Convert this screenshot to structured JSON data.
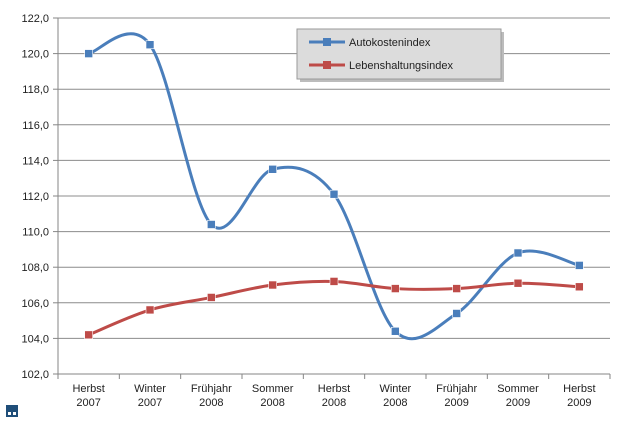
{
  "chart_data": {
    "type": "line",
    "smooth": true,
    "title": "",
    "xlabel": "",
    "ylabel": "",
    "categories": [
      [
        "Herbst",
        "2007"
      ],
      [
        "Winter",
        "2007"
      ],
      [
        "Frühjahr",
        "2008"
      ],
      [
        "Sommer",
        "2008"
      ],
      [
        "Herbst",
        "2008"
      ],
      [
        "Winter",
        "2008"
      ],
      [
        "Frühjahr",
        "2009"
      ],
      [
        "Sommer",
        "2009"
      ],
      [
        "Herbst",
        "2009"
      ]
    ],
    "ylim": [
      102,
      122
    ],
    "ytick_step": 2,
    "ytick_format": "comma-1-decimal",
    "grid": true,
    "legend": "top-right",
    "series": [
      {
        "name": "Autokostenindex",
        "color": "#4a7ebb",
        "marker_color": "#4a7ebb",
        "values": [
          120.0,
          120.5,
          110.4,
          113.5,
          112.1,
          104.4,
          105.4,
          108.8,
          108.1
        ]
      },
      {
        "name": "Lebenshaltungsindex",
        "color": "#be4b48",
        "marker_color": "#be4b48",
        "values": [
          104.2,
          105.6,
          106.3,
          107.0,
          107.2,
          106.8,
          106.8,
          107.1,
          106.9
        ]
      }
    ]
  }
}
